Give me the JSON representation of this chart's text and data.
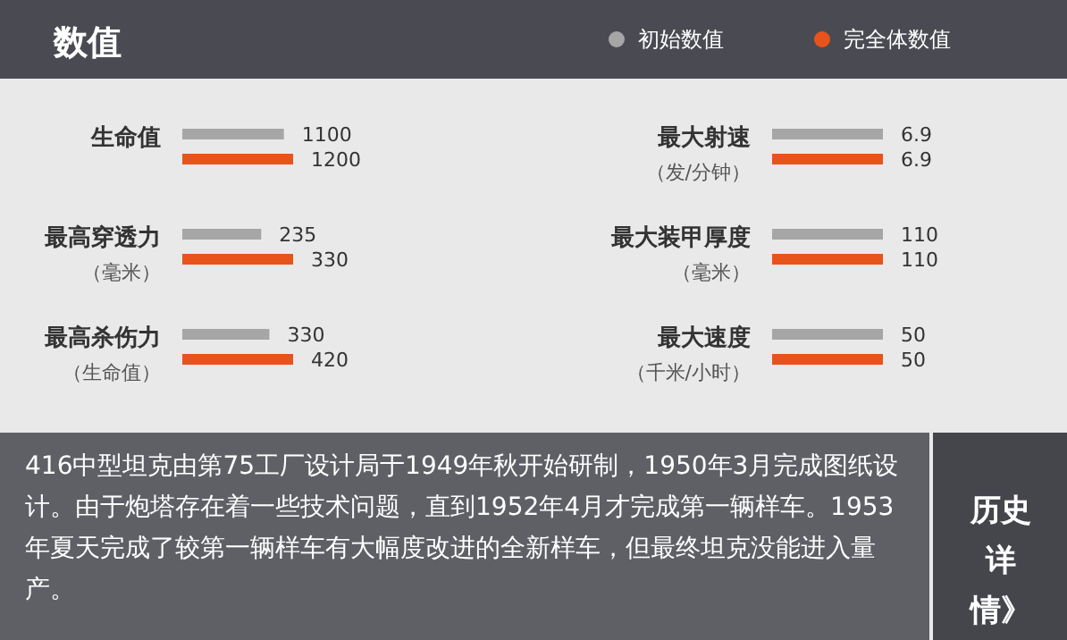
{
  "chart_data": [
    {
      "type": "other",
      "title": "数值",
      "annotations": [
        "初始数值",
        "完全体数值",
        "416中型坦克由第75工厂设计局于1949年秋开始研制，1950年3月完成图纸设计。由于炮塔存在着一些技术问题，直到1952年4月才完成第一辆样车。1953年夏天完成了较第一辆样车有大幅度改进的全新样车，但最终坦克没能进入量产。",
        "历史详情》"
      ]
    },
    {
      "type": "bar",
      "orientation": "horizontal",
      "title": "生命值",
      "categories": [
        null,
        null
      ],
      "data_labels": true,
      "values": [
        1100,
        1200
      ],
      "colors": [
        "#a6a6a6",
        "#e8531c"
      ]
    },
    {
      "type": "bar",
      "orientation": "horizontal",
      "title": "最大射速",
      "subtitle": "（发/分钟）",
      "categories": [
        null,
        null
      ],
      "data_labels": true,
      "values": [
        6.9,
        6.9
      ],
      "colors": [
        "#a6a6a6",
        "#e8531c"
      ]
    },
    {
      "type": "bar",
      "orientation": "horizontal",
      "title": "最高穿透力",
      "subtitle": "（毫米）",
      "categories": [
        null,
        null
      ],
      "data_labels": true,
      "values": [
        235,
        330
      ],
      "colors": [
        "#a6a6a6",
        "#e8531c"
      ]
    },
    {
      "type": "bar",
      "orientation": "horizontal",
      "title": "最大装甲厚度",
      "subtitle": "（毫米）",
      "categories": [
        null,
        null
      ],
      "data_labels": true,
      "values": [
        110,
        110
      ],
      "colors": [
        "#a6a6a6",
        "#e8531c"
      ]
    },
    {
      "type": "bar",
      "orientation": "horizontal",
      "title": "最高杀伤力",
      "subtitle": "（生命值）",
      "categories": [
        null,
        null
      ],
      "data_labels": true,
      "values": [
        330,
        420
      ],
      "colors": [
        "#a6a6a6",
        "#e8531c"
      ]
    },
    {
      "type": "bar",
      "orientation": "horizontal",
      "title": "最大速度",
      "subtitle": "（千米/小时）",
      "categories": [
        null,
        null
      ],
      "data_labels": true,
      "values": [
        50,
        50
      ],
      "colors": [
        "#a6a6a6",
        "#e8531c"
      ]
    }
  ]
}
